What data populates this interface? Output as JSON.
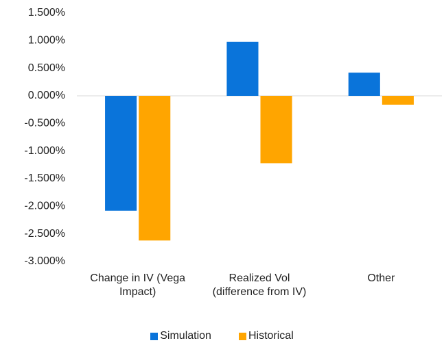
{
  "chart_data": {
    "type": "bar",
    "categories": [
      "Change in IV (Vega Impact)",
      "Realized Vol (difference from IV)",
      "Other"
    ],
    "series": [
      {
        "name": "Simulation",
        "color": "#0a74da",
        "values": [
          -2.08,
          0.98,
          0.42
        ]
      },
      {
        "name": "Historical",
        "color": "#ffa500",
        "values": [
          -2.62,
          -1.22,
          -0.16
        ]
      }
    ],
    "ylim": [
      -3.0,
      1.5
    ],
    "yticks": [
      {
        "value": -3.0,
        "label": "-3.000%"
      },
      {
        "value": -2.5,
        "label": "-2.500%"
      },
      {
        "value": -2.0,
        "label": "-2.000%"
      },
      {
        "value": -1.5,
        "label": "-1.500%"
      },
      {
        "value": -1.0,
        "label": "-1.000%"
      },
      {
        "value": -0.5,
        "label": "-0.500%"
      },
      {
        "value": 0,
        "label": "0.000%"
      },
      {
        "value": 0.5,
        "label": "0.500%"
      },
      {
        "value": 1.0,
        "label": "1.000%"
      },
      {
        "value": 1.5,
        "label": "1.500%"
      }
    ],
    "grid": false,
    "legend": "bottom"
  }
}
